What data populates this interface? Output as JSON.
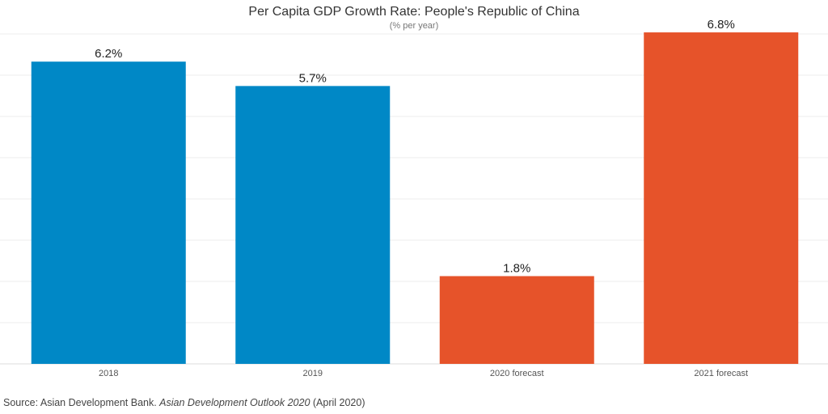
{
  "chart_data": {
    "type": "bar",
    "title": "Per Capita GDP Growth Rate: People's Republic of China",
    "subtitle": "(% per year)",
    "categories": [
      "2018",
      "2019",
      "2020 forecast",
      "2021 forecast"
    ],
    "values": [
      6.2,
      5.7,
      1.8,
      6.8
    ],
    "value_labels": [
      "6.2%",
      "5.7%",
      "1.8%",
      "6.8%"
    ],
    "colors": [
      "#0088c6",
      "#0088c6",
      "#e6532a",
      "#e6532a"
    ],
    "ylim": [
      0,
      7
    ],
    "grid": true,
    "xlabel": "",
    "ylabel": ""
  },
  "source": {
    "prefix": "Source: Asian Development Bank. ",
    "publication": "Asian Development Outlook 2020",
    "suffix": " (April 2020)"
  }
}
